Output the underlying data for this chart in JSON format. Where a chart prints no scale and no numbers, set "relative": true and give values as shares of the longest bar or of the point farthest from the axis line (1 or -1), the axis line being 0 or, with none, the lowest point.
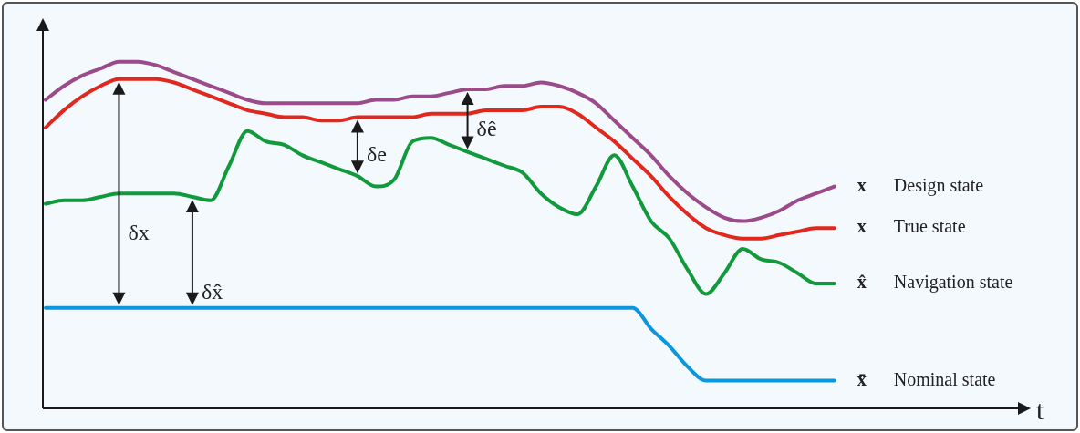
{
  "chart_data": {
    "type": "line",
    "relative": true,
    "categories": [
      null,
      null,
      null,
      null,
      null,
      null,
      null,
      null,
      null,
      null,
      null,
      null,
      null,
      null,
      null,
      null,
      null,
      null,
      null,
      null,
      null,
      null,
      null,
      null,
      null,
      null,
      null,
      null,
      null,
      null,
      null,
      null,
      null,
      null,
      null,
      null,
      null,
      null,
      null,
      null,
      null,
      null,
      null,
      null
    ],
    "series": [
      {
        "name": "x Design state",
        "color": "#9b4a8a",
        "values": [
          0.89,
          0.93,
          0.96,
          0.98,
          1.0,
          1.0,
          0.99,
          0.97,
          0.95,
          0.93,
          0.91,
          0.89,
          0.88,
          0.88,
          0.88,
          0.88,
          0.88,
          0.88,
          0.89,
          0.89,
          0.9,
          0.9,
          0.91,
          0.92,
          0.92,
          0.93,
          0.93,
          0.94,
          0.93,
          0.91,
          0.88,
          0.83,
          0.78,
          0.73,
          0.67,
          0.62,
          0.58,
          0.55,
          0.54,
          0.55,
          0.57,
          0.6,
          0.62,
          0.64
        ]
      },
      {
        "name": "x True state",
        "color": "#e0281e",
        "values": [
          0.81,
          0.86,
          0.9,
          0.93,
          0.95,
          0.95,
          0.95,
          0.94,
          0.92,
          0.9,
          0.88,
          0.86,
          0.85,
          0.84,
          0.84,
          0.83,
          0.83,
          0.84,
          0.84,
          0.84,
          0.84,
          0.85,
          0.85,
          0.85,
          0.86,
          0.86,
          0.86,
          0.87,
          0.87,
          0.85,
          0.81,
          0.77,
          0.72,
          0.67,
          0.61,
          0.56,
          0.52,
          0.5,
          0.49,
          0.49,
          0.5,
          0.51,
          0.52,
          0.52
        ]
      },
      {
        "name": "x̂ Navigation state",
        "color": "#119a3c",
        "values": [
          0.59,
          0.6,
          0.6,
          0.61,
          0.62,
          0.62,
          0.62,
          0.62,
          0.61,
          0.6,
          0.7,
          0.8,
          0.77,
          0.76,
          0.73,
          0.71,
          0.69,
          0.67,
          0.64,
          0.66,
          0.77,
          0.78,
          0.76,
          0.74,
          0.72,
          0.7,
          0.68,
          0.62,
          0.58,
          0.56,
          0.64,
          0.73,
          0.64,
          0.54,
          0.49,
          0.4,
          0.33,
          0.39,
          0.46,
          0.43,
          0.42,
          0.39,
          0.36,
          0.36
        ]
      },
      {
        "name": "x̄ Nominal state",
        "color": "#0c96dc",
        "values": [
          0.29,
          0.29,
          0.29,
          0.29,
          0.29,
          0.29,
          0.29,
          0.29,
          0.29,
          0.29,
          0.29,
          0.29,
          0.29,
          0.29,
          0.29,
          0.29,
          0.29,
          0.29,
          0.29,
          0.29,
          0.29,
          0.29,
          0.29,
          0.29,
          0.29,
          0.29,
          0.29,
          0.29,
          0.29,
          0.29,
          0.29,
          0.29,
          0.29,
          0.23,
          0.18,
          0.12,
          0.08,
          0.08,
          0.08,
          0.08,
          0.08,
          0.08,
          0.08,
          0.08
        ]
      }
    ],
    "annotations": [
      "δx",
      "δx̂",
      "δe",
      "δê",
      "t"
    ]
  }
}
